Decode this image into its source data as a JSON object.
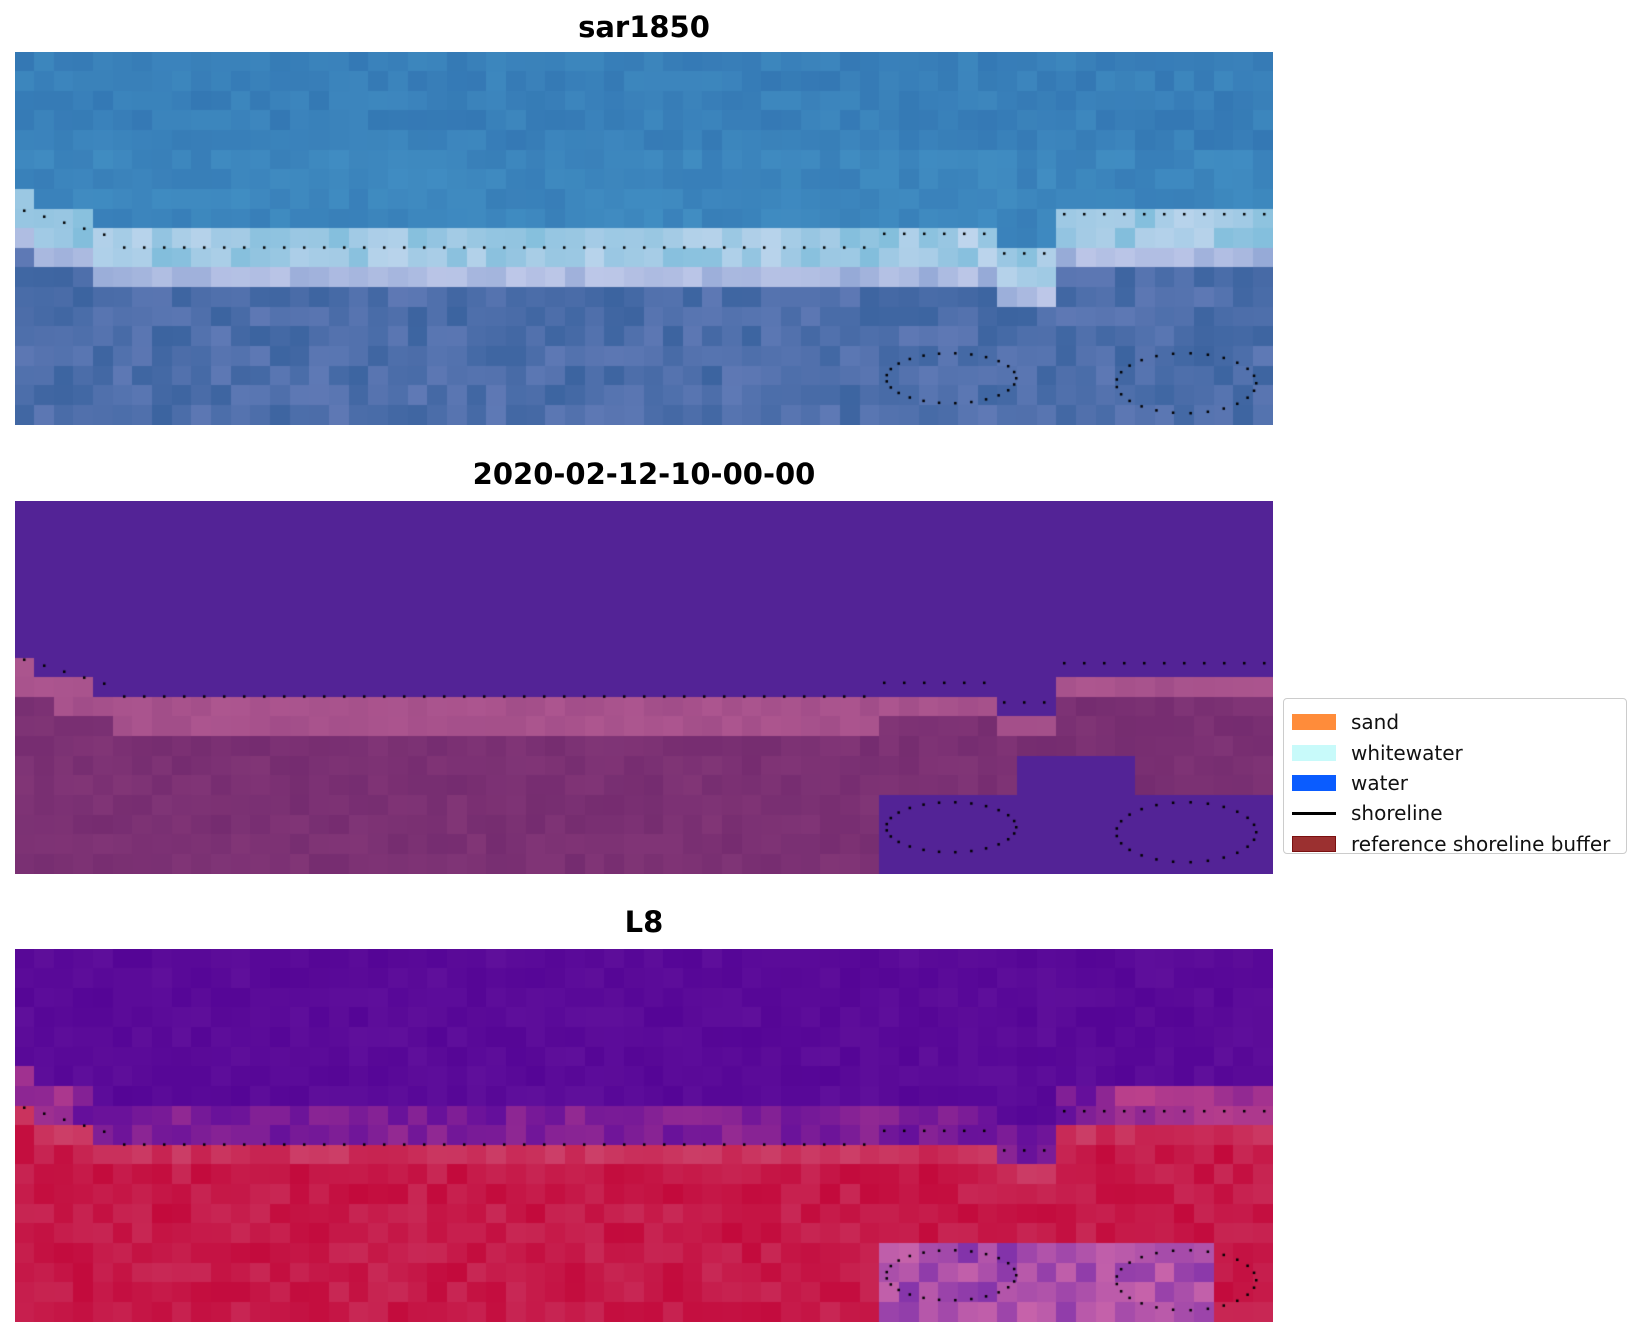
{
  "panels": [
    {
      "title": "sar1850",
      "palette": "rgb"
    },
    {
      "title": "2020-02-12-10-00-00",
      "palette": "classified"
    },
    {
      "title": "L8",
      "palette": "index"
    }
  ],
  "legend": {
    "items": [
      {
        "label": "sand",
        "type": "patch",
        "color": "#ff8c3a"
      },
      {
        "label": "whitewater",
        "type": "patch",
        "color": "#c8fafa"
      },
      {
        "label": "water",
        "type": "patch",
        "color": "#0a5cff"
      },
      {
        "label": "shoreline",
        "type": "line",
        "color": "#000000"
      },
      {
        "label": "reference shoreline buffer",
        "type": "patch",
        "color": "#9b3030",
        "edge": "#7a1010"
      }
    ]
  }
}
